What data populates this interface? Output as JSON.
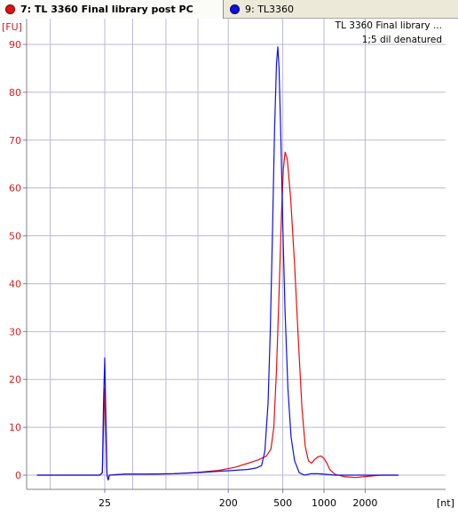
{
  "tabs": [
    {
      "label": "7: TL 3360 Final library post PC",
      "color": "#e01010",
      "active": true
    },
    {
      "label": "9: TL3360",
      "color": "#1010e0",
      "active": false
    }
  ],
  "annotation": {
    "line1": "TL 3360 Final library ...",
    "line2": "1;5 dil denatured"
  },
  "chart_data": {
    "type": "line",
    "ylabel": "[FU]",
    "xlabel": "[nt]",
    "x_scale": "log",
    "ylim": [
      -2,
      95
    ],
    "y_ticks": [
      0,
      10,
      20,
      30,
      40,
      50,
      60,
      70,
      80,
      90
    ],
    "x_ticks": [
      25,
      200,
      500,
      1000,
      2000
    ],
    "grid": true,
    "series": [
      {
        "color": "#e01010",
        "points": [
          [
            8,
            0
          ],
          [
            15,
            0
          ],
          [
            20,
            0
          ],
          [
            23,
            0
          ],
          [
            24,
            0.5
          ],
          [
            24.5,
            10
          ],
          [
            25,
            18
          ],
          [
            25.5,
            8
          ],
          [
            26,
            0
          ],
          [
            26.5,
            -1
          ],
          [
            27,
            0
          ],
          [
            35,
            0.2
          ],
          [
            50,
            0.2
          ],
          [
            80,
            0.3
          ],
          [
            120,
            0.6
          ],
          [
            170,
            1.0
          ],
          [
            220,
            1.6
          ],
          [
            280,
            2.5
          ],
          [
            330,
            3.2
          ],
          [
            380,
            4.0
          ],
          [
            410,
            5.5
          ],
          [
            430,
            10
          ],
          [
            450,
            22
          ],
          [
            470,
            38
          ],
          [
            490,
            55
          ],
          [
            505,
            64
          ],
          [
            520,
            67.5
          ],
          [
            540,
            66
          ],
          [
            570,
            58
          ],
          [
            610,
            44
          ],
          [
            650,
            28
          ],
          [
            690,
            14
          ],
          [
            730,
            6
          ],
          [
            770,
            3
          ],
          [
            810,
            2.5
          ],
          [
            850,
            3.2
          ],
          [
            900,
            3.8
          ],
          [
            950,
            4.0
          ],
          [
            1000,
            3.5
          ],
          [
            1050,
            2.5
          ],
          [
            1100,
            1.2
          ],
          [
            1200,
            0.2
          ],
          [
            1400,
            -0.3
          ],
          [
            1700,
            -0.5
          ],
          [
            2000,
            -0.3
          ],
          [
            2600,
            0
          ],
          [
            3500,
            0
          ]
        ]
      },
      {
        "color": "#1010e0",
        "points": [
          [
            8,
            0
          ],
          [
            15,
            0
          ],
          [
            20,
            0
          ],
          [
            23,
            0
          ],
          [
            24,
            0.5
          ],
          [
            24.5,
            15
          ],
          [
            25,
            24.5
          ],
          [
            25.5,
            12
          ],
          [
            26,
            0
          ],
          [
            26.5,
            -1
          ],
          [
            27,
            0
          ],
          [
            35,
            0.2
          ],
          [
            50,
            0.2
          ],
          [
            80,
            0.3
          ],
          [
            120,
            0.5
          ],
          [
            170,
            0.8
          ],
          [
            220,
            1.0
          ],
          [
            280,
            1.2
          ],
          [
            320,
            1.5
          ],
          [
            350,
            2
          ],
          [
            370,
            5
          ],
          [
            390,
            15
          ],
          [
            405,
            30
          ],
          [
            420,
            50
          ],
          [
            435,
            72
          ],
          [
            450,
            86
          ],
          [
            460,
            89.5
          ],
          [
            470,
            85
          ],
          [
            485,
            70
          ],
          [
            500,
            52
          ],
          [
            520,
            34
          ],
          [
            545,
            18
          ],
          [
            575,
            8
          ],
          [
            610,
            3
          ],
          [
            660,
            0.5
          ],
          [
            720,
            0
          ],
          [
            800,
            0.3
          ],
          [
            900,
            0.3
          ],
          [
            1000,
            0.2
          ],
          [
            1200,
            0
          ],
          [
            1600,
            0
          ],
          [
            2000,
            0
          ],
          [
            2600,
            0
          ],
          [
            3500,
            0
          ]
        ]
      }
    ]
  }
}
